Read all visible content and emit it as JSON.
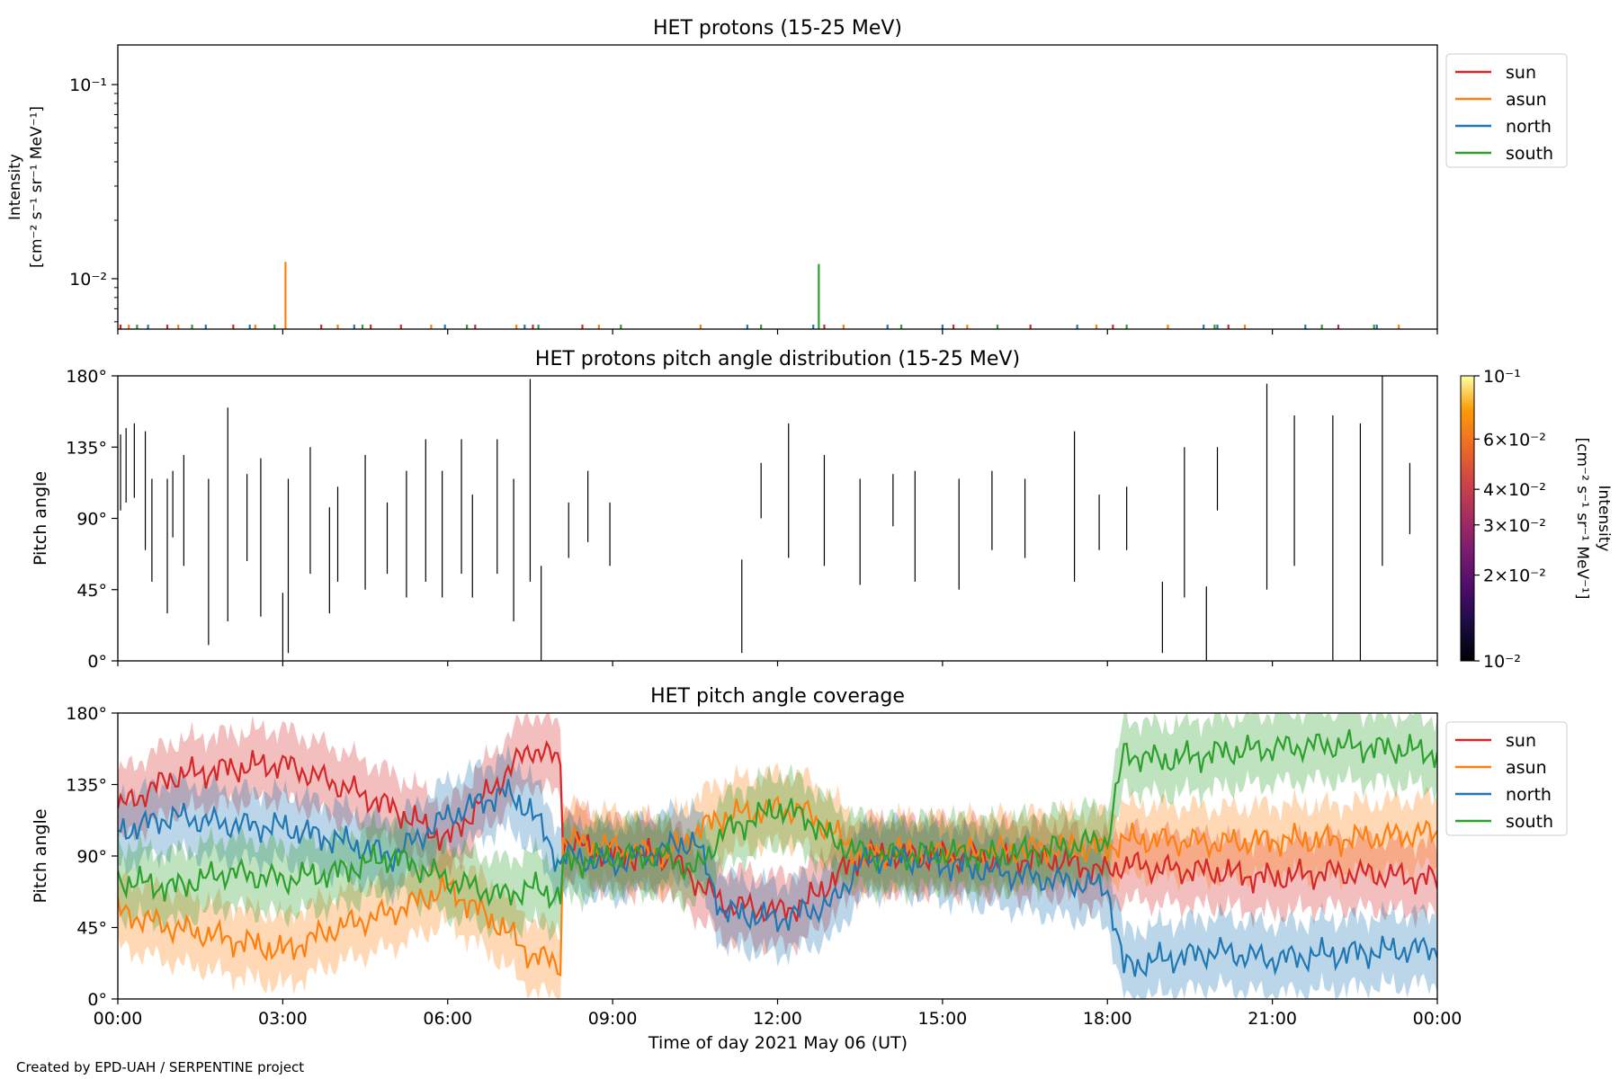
{
  "footer": "Created by EPD-UAH / SERPENTINE project",
  "xlabel": "Time of day 2021 May 06 (UT)",
  "xticks": [
    "00:00",
    "03:00",
    "06:00",
    "09:00",
    "12:00",
    "15:00",
    "18:00",
    "21:00",
    "00:00"
  ],
  "colors": {
    "sun": "#d62728",
    "asun": "#ff7f0e",
    "north": "#1f77b4",
    "south": "#2ca02c"
  },
  "chart_data": [
    {
      "type": "line",
      "title": "HET protons (15-25 MeV)",
      "ylabel_lines": [
        "Intensity",
        "[cm⁻² s⁻¹ sr⁻¹ MeV⁻¹]"
      ],
      "yscale": "log",
      "ylim": [
        0.0055,
        0.16
      ],
      "yticks": [
        {
          "value": 0.1,
          "label": "10⁻¹"
        },
        {
          "value": 0.01,
          "label": "10⁻²"
        }
      ],
      "x_unit": "hours of day",
      "xlim": [
        0,
        24
      ],
      "legend": {
        "position": "upper-right outside",
        "entries": [
          "sun",
          "asun",
          "north",
          "south"
        ]
      },
      "series": [
        {
          "name": "sun",
          "color": "#d62728",
          "spikes": [
            [
              0.05,
              0.0058
            ],
            [
              0.9,
              0.0058
            ],
            [
              2.1,
              0.0058
            ],
            [
              3.7,
              0.0058
            ],
            [
              4.6,
              0.0058
            ],
            [
              5.15,
              0.0058
            ],
            [
              6.5,
              0.0058
            ],
            [
              7.55,
              0.0058
            ],
            [
              8.45,
              0.0058
            ],
            [
              12.85,
              0.0058
            ],
            [
              15.2,
              0.0058
            ],
            [
              16.6,
              0.0058
            ],
            [
              18.1,
              0.0058
            ],
            [
              20.2,
              0.0058
            ],
            [
              22.2,
              0.0058
            ]
          ]
        },
        {
          "name": "asun",
          "color": "#ff7f0e",
          "spikes": [
            [
              0.2,
              0.0058
            ],
            [
              1.1,
              0.0058
            ],
            [
              2.5,
              0.0058
            ],
            [
              3.05,
              0.0122
            ],
            [
              4.0,
              0.0058
            ],
            [
              5.7,
              0.0058
            ],
            [
              7.25,
              0.0058
            ],
            [
              8.75,
              0.0058
            ],
            [
              10.6,
              0.0058
            ],
            [
              13.2,
              0.0058
            ],
            [
              15.45,
              0.0058
            ],
            [
              17.8,
              0.0058
            ],
            [
              19.1,
              0.0058
            ],
            [
              20.5,
              0.0058
            ],
            [
              23.3,
              0.0058
            ]
          ]
        },
        {
          "name": "north",
          "color": "#1f77b4",
          "spikes": [
            [
              0.55,
              0.0058
            ],
            [
              1.6,
              0.0058
            ],
            [
              2.4,
              0.0058
            ],
            [
              4.3,
              0.0058
            ],
            [
              5.95,
              0.0058
            ],
            [
              7.4,
              0.0058
            ],
            [
              11.45,
              0.0058
            ],
            [
              12.65,
              0.0058
            ],
            [
              14.0,
              0.0058
            ],
            [
              15.0,
              0.0058
            ],
            [
              17.45,
              0.0058
            ],
            [
              19.75,
              0.0058
            ],
            [
              20.0,
              0.0058
            ],
            [
              21.6,
              0.0058
            ],
            [
              22.9,
              0.0058
            ]
          ]
        },
        {
          "name": "south",
          "color": "#2ca02c",
          "spikes": [
            [
              0.35,
              0.0058
            ],
            [
              1.35,
              0.0058
            ],
            [
              2.85,
              0.0058
            ],
            [
              4.45,
              0.0058
            ],
            [
              6.35,
              0.0058
            ],
            [
              7.65,
              0.0058
            ],
            [
              9.15,
              0.0058
            ],
            [
              11.7,
              0.0058
            ],
            [
              12.75,
              0.0119
            ],
            [
              14.25,
              0.0058
            ],
            [
              16.0,
              0.0058
            ],
            [
              18.35,
              0.0058
            ],
            [
              19.95,
              0.0058
            ],
            [
              21.9,
              0.0058
            ],
            [
              22.85,
              0.0058
            ]
          ]
        }
      ]
    },
    {
      "type": "heatmap",
      "title": "HET protons pitch angle distribution (15-25 MeV)",
      "ylabel": "Pitch angle",
      "ylim": [
        0,
        180
      ],
      "yticks": [
        "0°",
        "45°",
        "90°",
        "135°",
        "180°"
      ],
      "ytick_values": [
        0,
        45,
        90,
        135,
        180
      ],
      "xlim": [
        0,
        24
      ],
      "colorbar": {
        "label_lines": [
          "Intensity",
          "[cm⁻² s⁻¹ sr⁻¹ MeV⁻¹]"
        ],
        "scale": "log",
        "range": [
          0.01,
          0.1
        ],
        "ticks": [
          {
            "value": 0.1,
            "label": "10⁻¹"
          },
          {
            "value": 0.06,
            "label": "6×10⁻²"
          },
          {
            "value": 0.04,
            "label": "4×10⁻²"
          },
          {
            "value": 0.03,
            "label": "3×10⁻²"
          },
          {
            "value": 0.02,
            "label": "2×10⁻²"
          },
          {
            "value": 0.01,
            "label": "10⁻²"
          }
        ],
        "colormap": "inferno"
      },
      "segments": [
        [
          0.05,
          95,
          143
        ],
        [
          0.15,
          100,
          147
        ],
        [
          0.3,
          103,
          150
        ],
        [
          0.5,
          70,
          145
        ],
        [
          0.62,
          50,
          115
        ],
        [
          0.9,
          30,
          115
        ],
        [
          1.0,
          78,
          120
        ],
        [
          1.2,
          60,
          130
        ],
        [
          1.65,
          10,
          115
        ],
        [
          2.0,
          25,
          160
        ],
        [
          2.35,
          63,
          118
        ],
        [
          2.6,
          28,
          128
        ],
        [
          3.0,
          0,
          43
        ],
        [
          3.1,
          5,
          115
        ],
        [
          3.5,
          55,
          135
        ],
        [
          3.85,
          30,
          97
        ],
        [
          4.0,
          50,
          110
        ],
        [
          4.5,
          45,
          130
        ],
        [
          4.9,
          55,
          100
        ],
        [
          5.25,
          40,
          120
        ],
        [
          5.6,
          50,
          140
        ],
        [
          5.9,
          40,
          120
        ],
        [
          6.25,
          55,
          140
        ],
        [
          6.45,
          40,
          105
        ],
        [
          6.9,
          55,
          140
        ],
        [
          7.2,
          25,
          115
        ],
        [
          7.5,
          50,
          178
        ],
        [
          7.7,
          0,
          60
        ],
        [
          8.2,
          65,
          100
        ],
        [
          8.55,
          75,
          120
        ],
        [
          8.95,
          60,
          100
        ],
        [
          11.35,
          5,
          64
        ],
        [
          11.7,
          90,
          125
        ],
        [
          12.2,
          65,
          150
        ],
        [
          12.85,
          60,
          130
        ],
        [
          13.5,
          48,
          115
        ],
        [
          14.1,
          85,
          118
        ],
        [
          14.5,
          50,
          120
        ],
        [
          15.3,
          45,
          115
        ],
        [
          15.9,
          70,
          120
        ],
        [
          16.5,
          65,
          115
        ],
        [
          17.4,
          50,
          145
        ],
        [
          17.85,
          70,
          105
        ],
        [
          18.35,
          70,
          110
        ],
        [
          19.0,
          5,
          50
        ],
        [
          19.4,
          40,
          135
        ],
        [
          19.8,
          0,
          47
        ],
        [
          20.0,
          95,
          135
        ],
        [
          20.9,
          45,
          175
        ],
        [
          21.4,
          60,
          155
        ],
        [
          22.1,
          0,
          155
        ],
        [
          22.6,
          0,
          150
        ],
        [
          23.0,
          60,
          180
        ],
        [
          23.5,
          80,
          125
        ]
      ]
    },
    {
      "type": "area",
      "title": "HET pitch angle coverage",
      "ylabel": "Pitch angle",
      "ylim": [
        0,
        180
      ],
      "yticks": [
        "0°",
        "45°",
        "90°",
        "135°",
        "180°"
      ],
      "ytick_values": [
        0,
        45,
        90,
        135,
        180
      ],
      "xlim": [
        0,
        24
      ],
      "xlabel": "Time of day 2021 May 06 (UT)",
      "legend": {
        "position": "upper-right outside",
        "entries": [
          "sun",
          "asun",
          "north",
          "south"
        ]
      },
      "band_halfwidth_deg": 22,
      "series": [
        {
          "name": "sun",
          "color": "#d62728",
          "x": [
            0,
            1,
            2,
            3,
            4,
            5,
            6,
            7,
            7.5,
            8.05,
            8.1,
            9,
            10,
            10.5,
            11,
            12,
            12.5,
            13,
            13.5,
            14,
            15,
            16,
            17,
            18,
            18.3,
            19,
            20,
            21,
            22,
            23,
            24
          ],
          "y": [
            120,
            140,
            145,
            148,
            135,
            120,
            100,
            140,
            158,
            150,
            100,
            90,
            90,
            75,
            60,
            55,
            60,
            75,
            90,
            90,
            90,
            88,
            88,
            80,
            85,
            82,
            80,
            76,
            80,
            78,
            75
          ]
        },
        {
          "name": "asun",
          "color": "#ff7f0e",
          "x": [
            0,
            1,
            2,
            3,
            4,
            5,
            6,
            7,
            7.5,
            8.05,
            8.1,
            9,
            10,
            10.5,
            11,
            12,
            12.5,
            13,
            13.5,
            14,
            15,
            16,
            17,
            18,
            18.3,
            19,
            20,
            21,
            22,
            23,
            24
          ],
          "y": [
            55,
            45,
            38,
            30,
            45,
            55,
            70,
            45,
            28,
            22,
            100,
            95,
            90,
            105,
            115,
            120,
            118,
            105,
            90,
            92,
            92,
            93,
            95,
            95,
            100,
            100,
            98,
            100,
            100,
            102,
            105
          ]
        },
        {
          "name": "north",
          "color": "#1f77b4",
          "x": [
            0,
            1,
            2,
            3,
            4,
            5,
            6,
            7,
            7.5,
            8.05,
            8.1,
            9,
            10,
            10.5,
            11,
            12,
            12.5,
            13,
            13.5,
            14,
            15,
            16,
            17,
            18,
            18.3,
            19,
            20,
            21,
            22,
            23,
            24
          ],
          "y": [
            105,
            115,
            110,
            108,
            100,
            90,
            115,
            130,
            120,
            85,
            90,
            85,
            95,
            100,
            55,
            50,
            55,
            60,
            85,
            90,
            85,
            80,
            75,
            70,
            20,
            25,
            30,
            25,
            28,
            30,
            32
          ]
        },
        {
          "name": "south",
          "color": "#2ca02c",
          "x": [
            0,
            1,
            2,
            3,
            4,
            5,
            6,
            7,
            7.5,
            8.05,
            8.1,
            9,
            10,
            10.5,
            11,
            12,
            12.5,
            13,
            13.5,
            14,
            15,
            16,
            17,
            18,
            18.3,
            19,
            20,
            21,
            22,
            23,
            24
          ],
          "y": [
            75,
            70,
            80,
            75,
            80,
            90,
            75,
            65,
            70,
            65,
            85,
            90,
            90,
            80,
            105,
            120,
            115,
            100,
            92,
            90,
            92,
            90,
            95,
            100,
            155,
            150,
            155,
            158,
            160,
            158,
            155
          ]
        }
      ]
    }
  ]
}
